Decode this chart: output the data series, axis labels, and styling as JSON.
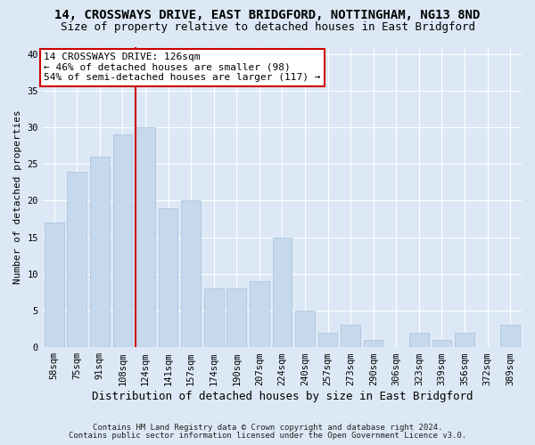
{
  "title": "14, CROSSWAYS DRIVE, EAST BRIDGFORD, NOTTINGHAM, NG13 8ND",
  "subtitle": "Size of property relative to detached houses in East Bridgford",
  "xlabel": "Distribution of detached houses by size in East Bridgford",
  "ylabel": "Number of detached properties",
  "footnote1": "Contains HM Land Registry data © Crown copyright and database right 2024.",
  "footnote2": "Contains public sector information licensed under the Open Government Licence v3.0.",
  "categories": [
    "58sqm",
    "75sqm",
    "91sqm",
    "108sqm",
    "124sqm",
    "141sqm",
    "157sqm",
    "174sqm",
    "190sqm",
    "207sqm",
    "224sqm",
    "240sqm",
    "257sqm",
    "273sqm",
    "290sqm",
    "306sqm",
    "323sqm",
    "339sqm",
    "356sqm",
    "372sqm",
    "389sqm"
  ],
  "values": [
    17,
    24,
    26,
    29,
    30,
    19,
    20,
    8,
    8,
    9,
    15,
    5,
    2,
    3,
    1,
    0,
    2,
    1,
    2,
    0,
    3
  ],
  "bar_color": "#c5d8ec",
  "bar_edge_color": "#a8c0dc",
  "vline_color": "#cc0000",
  "vline_index": 3.575,
  "annotation_line1": "14 CROSSWAYS DRIVE: 126sqm",
  "annotation_line2": "← 46% of detached houses are smaller (98)",
  "annotation_line3": "54% of semi-detached houses are larger (117) →",
  "annotation_box_facecolor": "#ffffff",
  "annotation_box_edgecolor": "#cc0000",
  "ylim_max": 41,
  "yticks": [
    0,
    5,
    10,
    15,
    20,
    25,
    30,
    35,
    40
  ],
  "bg_color": "#dce8f5",
  "grid_color": "#ffffff",
  "title_fontsize": 10,
  "subtitle_fontsize": 9,
  "tick_fontsize": 7.5,
  "ylabel_fontsize": 8,
  "xlabel_fontsize": 9,
  "footnote_fontsize": 6.5
}
